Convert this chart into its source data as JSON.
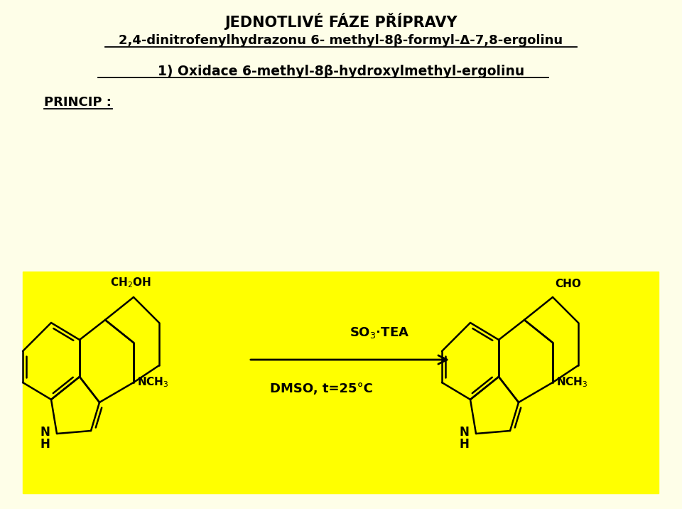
{
  "bg_color": "#fefee8",
  "yellow_box_color": "#ffff00",
  "line_color": "#000000",
  "title_line1": "JEDNOTLIVÉ FÁZE PŘÍPRAVY",
  "title_line2": "2,4-dinitrofenylhydrazonu 6- methyl-8β-formyl-Δ-7,8-ergolinu",
  "subtitle": "1) Oxidace 6-methyl-8β-hydroxylmethyl-ergolinu",
  "princip": "PRINCIP :",
  "reagent_top": "SO$_3$·TEA",
  "reagent_bottom": "DMSO, t=25 °C",
  "lw": 1.8
}
